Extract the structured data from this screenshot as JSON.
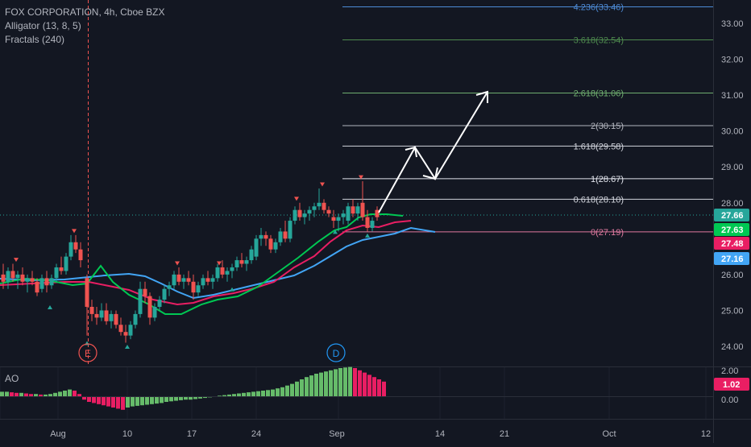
{
  "header": {
    "symbol": "FOX CORPORATION, 4h, Cboe BZX",
    "indicator1": "Alligator (13, 8, 5)",
    "indicator2": "Fractals (240)"
  },
  "ao_pane": {
    "label": "AO",
    "badge": "1.02",
    "ticks": [
      "2.00",
      "0.00"
    ]
  },
  "price_axis": {
    "ticks": [
      "33.00",
      "32.00",
      "31.00",
      "30.00",
      "29.00",
      "28.00",
      "26.00",
      "25.00",
      "24.00"
    ],
    "badges": [
      {
        "text": "27.66",
        "bg": "#26a69a",
        "fg": "#ffffff"
      },
      {
        "text": "27.63",
        "bg": "#00c853",
        "fg": "#ffffff"
      },
      {
        "text": "27.48",
        "bg": "#e91e63",
        "fg": "#ffffff"
      },
      {
        "text": "27.16",
        "bg": "#42a5f5",
        "fg": "#ffffff"
      }
    ]
  },
  "time_axis": {
    "labels": [
      "Aug",
      "10",
      "17",
      "24",
      "Sep",
      "14",
      "21",
      "Oct",
      "12"
    ]
  },
  "fib_levels": [
    {
      "label": "4.236(33.46)",
      "color": "#4d8bd6",
      "price": 33.46
    },
    {
      "label": "3.618(32.54)",
      "color": "#4e8a4e",
      "price": 32.54
    },
    {
      "label": "2.618(31.06)",
      "color": "#6fae6f",
      "price": 31.06
    },
    {
      "label": "2(30.15)",
      "color": "#b2b5be",
      "price": 30.15
    },
    {
      "label": "1.618(29.58)",
      "color": "#d1d4dc",
      "price": 29.58
    },
    {
      "label": "1(28.67)",
      "color": "#e0e3eb",
      "price": 28.67
    },
    {
      "label": "0.618(28.10)",
      "color": "#d1d4dc",
      "price": 28.1
    },
    {
      "label": "0(27.19)",
      "color": "#e07aa0",
      "price": 27.19
    }
  ],
  "events": {
    "earnings": "E",
    "dividend": "D"
  },
  "colors": {
    "up": "#26a69a",
    "down": "#ef5350",
    "jaw": "#42a5f5",
    "teeth": "#e91e63",
    "lips": "#00c853",
    "ao_up": "#66bb6a",
    "ao_down": "#e91e63"
  }
}
